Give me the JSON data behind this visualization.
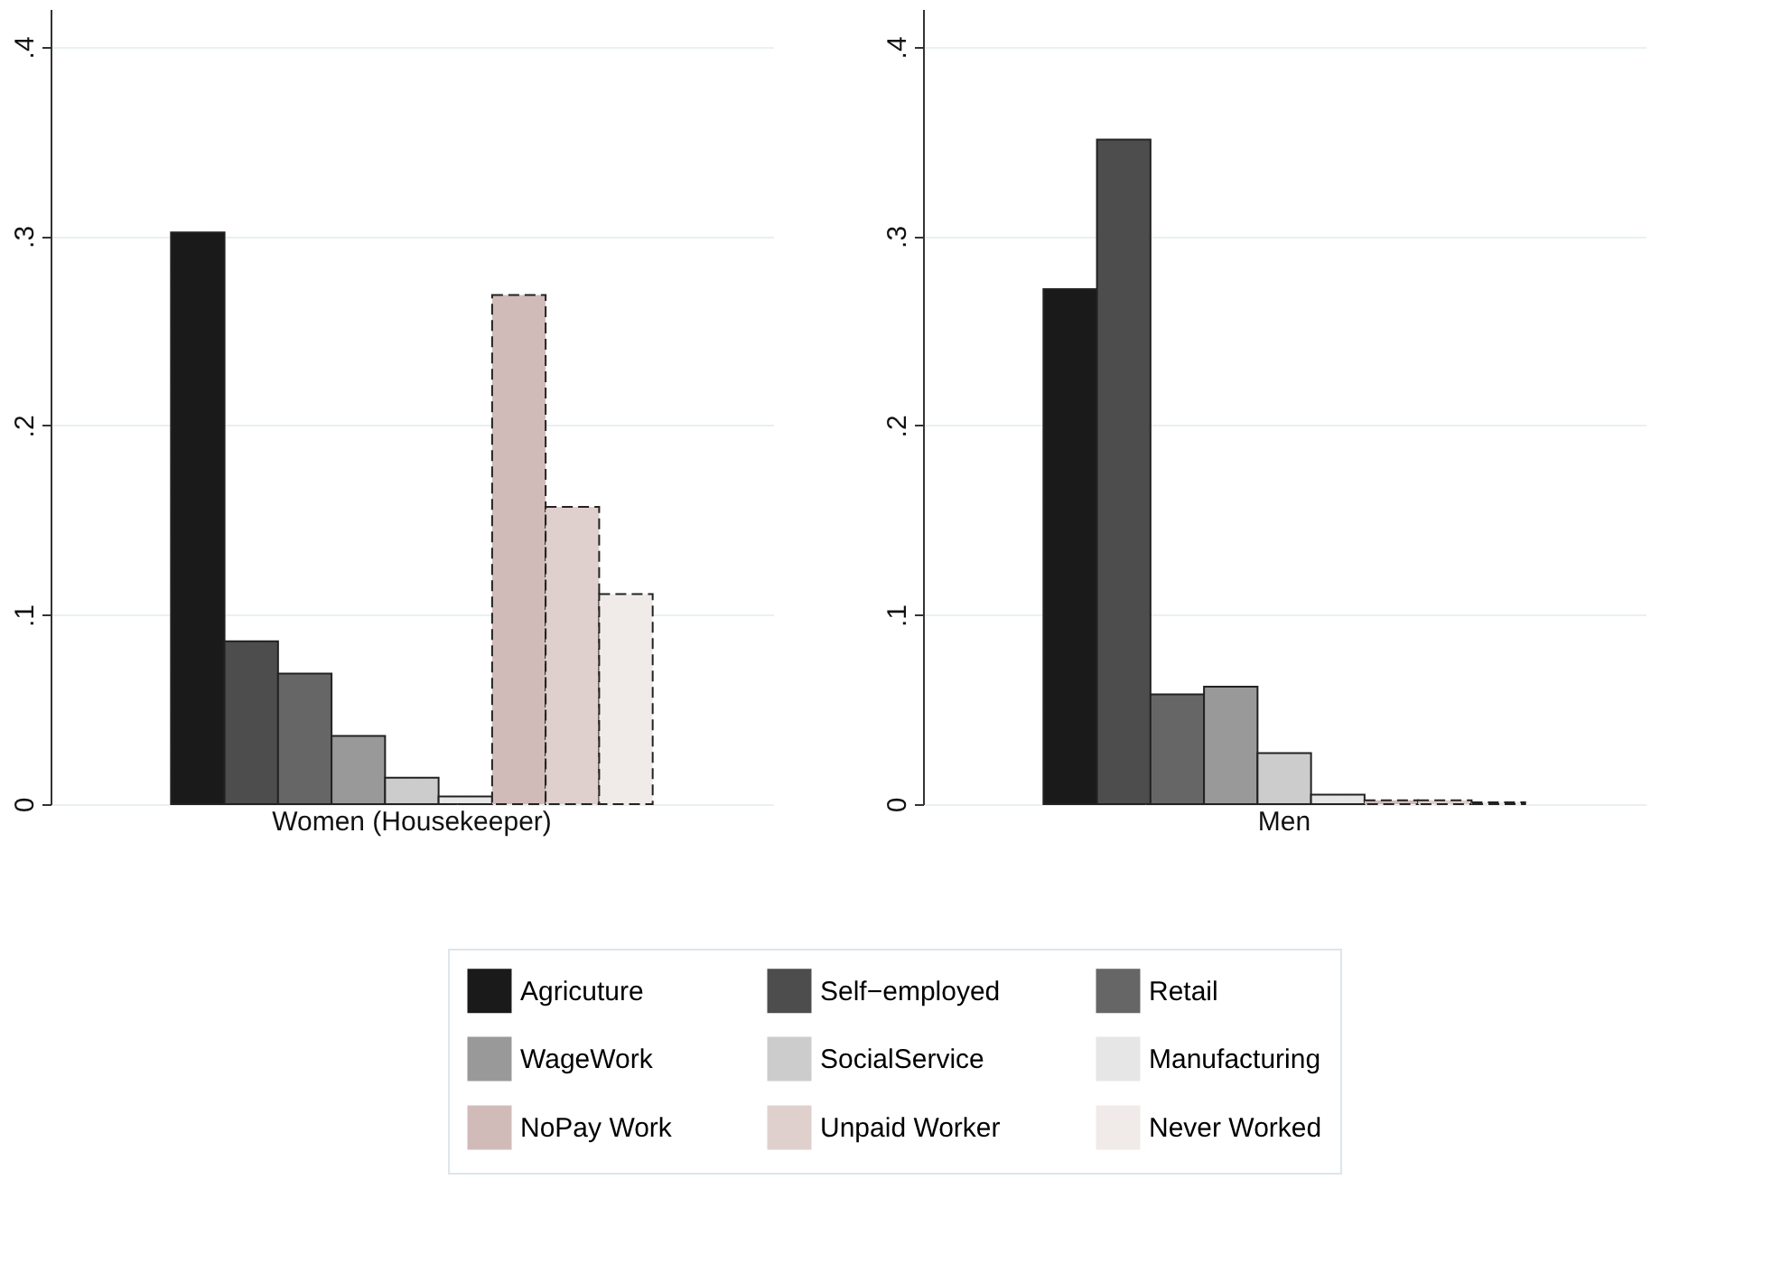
{
  "chart_data": [
    {
      "type": "bar",
      "categories": [
        "Women (Housekeeper)"
      ],
      "ylim": [
        0,
        0.42
      ],
      "yticks": [
        {
          "value": 0,
          "label": "0"
        },
        {
          "value": 0.1,
          "label": ".1"
        },
        {
          "value": 0.2,
          "label": ".2"
        },
        {
          "value": 0.3,
          "label": ".3"
        },
        {
          "value": 0.4,
          "label": ".4"
        }
      ],
      "grid": "y",
      "legend": "bottom",
      "series": [
        {
          "name": "Agricuture",
          "color": "#1a1a1a",
          "values": [
            0.302
          ]
        },
        {
          "name": "Self−employed",
          "color": "#4d4d4d",
          "values": [
            0.086
          ]
        },
        {
          "name": "Retail",
          "color": "#666666",
          "values": [
            0.069
          ]
        },
        {
          "name": "WageWork",
          "color": "#999999",
          "values": [
            0.036
          ]
        },
        {
          "name": "SocialService",
          "color": "#cccccc",
          "values": [
            0.014
          ]
        },
        {
          "name": "Manufacturing",
          "color": "#e6e6e6",
          "values": [
            0.004
          ]
        },
        {
          "name": "NoPay Work",
          "color": "#d1bbb8",
          "values": [
            0.269
          ],
          "line_style": "dashed"
        },
        {
          "name": "Unpaid Worker",
          "color": "#e0d0cd",
          "values": [
            0.157
          ],
          "line_style": "dashed"
        },
        {
          "name": "Never Worked",
          "color": "#f0ebe8",
          "values": [
            0.111
          ],
          "line_style": "dashed"
        }
      ]
    },
    {
      "type": "bar",
      "categories": [
        "Men"
      ],
      "ylim": [
        0,
        0.42
      ],
      "yticks": [
        {
          "value": 0,
          "label": "0"
        },
        {
          "value": 0.1,
          "label": ".1"
        },
        {
          "value": 0.2,
          "label": ".2"
        },
        {
          "value": 0.3,
          "label": ".3"
        },
        {
          "value": 0.4,
          "label": ".4"
        }
      ],
      "grid": "y",
      "legend": "bottom",
      "series": [
        {
          "name": "Agricuture",
          "color": "#1a1a1a",
          "values": [
            0.272
          ]
        },
        {
          "name": "Self−employed",
          "color": "#4d4d4d",
          "values": [
            0.351
          ]
        },
        {
          "name": "Retail",
          "color": "#666666",
          "values": [
            0.058
          ]
        },
        {
          "name": "WageWork",
          "color": "#999999",
          "values": [
            0.062
          ]
        },
        {
          "name": "SocialService",
          "color": "#cccccc",
          "values": [
            0.027
          ]
        },
        {
          "name": "Manufacturing",
          "color": "#e6e6e6",
          "values": [
            0.005
          ]
        },
        {
          "name": "NoPay Work",
          "color": "#d1bbb8",
          "values": [
            0.002
          ],
          "line_style": "dashed"
        },
        {
          "name": "Unpaid Worker",
          "color": "#e0d0cd",
          "values": [
            0.002
          ],
          "line_style": "dashed"
        },
        {
          "name": "Never Worked",
          "color": "#f0ebe8",
          "values": [
            0.001
          ],
          "line_style": "dashed"
        }
      ]
    }
  ]
}
